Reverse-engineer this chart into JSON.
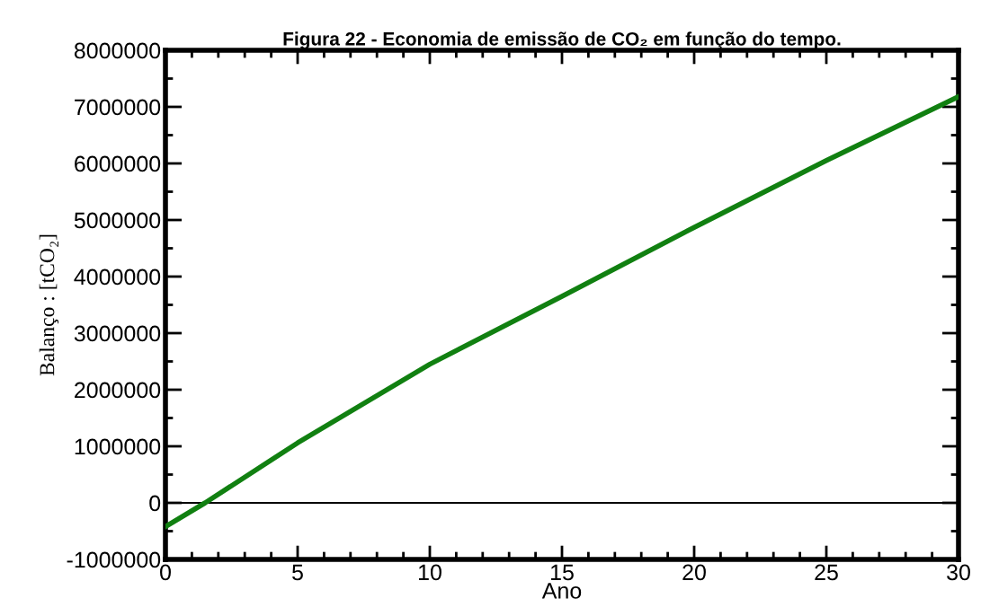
{
  "chart_data": {
    "type": "line",
    "title": "Figura 22 - Economia de emissão de CO₂ em função do tempo.",
    "xlabel": "Ano",
    "ylabel": "Balanço : [tCO₂]",
    "series": [
      {
        "color": "#118011",
        "x": [
          0,
          1.5,
          5,
          10,
          15,
          20,
          25,
          30
        ],
        "values": [
          -420000,
          0,
          1060000,
          2450000,
          3650000,
          4870000,
          6050000,
          7180000
        ]
      }
    ],
    "xlim": [
      0,
      30
    ],
    "xticks": [
      0,
      5,
      10,
      15,
      20,
      25,
      30
    ],
    "ylim": [
      -1000000,
      8000000
    ],
    "yticks": [
      -1000000,
      0,
      1000000,
      2000000,
      3000000,
      4000000,
      5000000,
      6000000,
      7000000,
      8000000
    ],
    "ref_lines": [
      {
        "axis": "y",
        "value": 0,
        "color": "#000000"
      }
    ],
    "grid": false,
    "legend": false,
    "marker": "none",
    "line_style": "solid"
  }
}
